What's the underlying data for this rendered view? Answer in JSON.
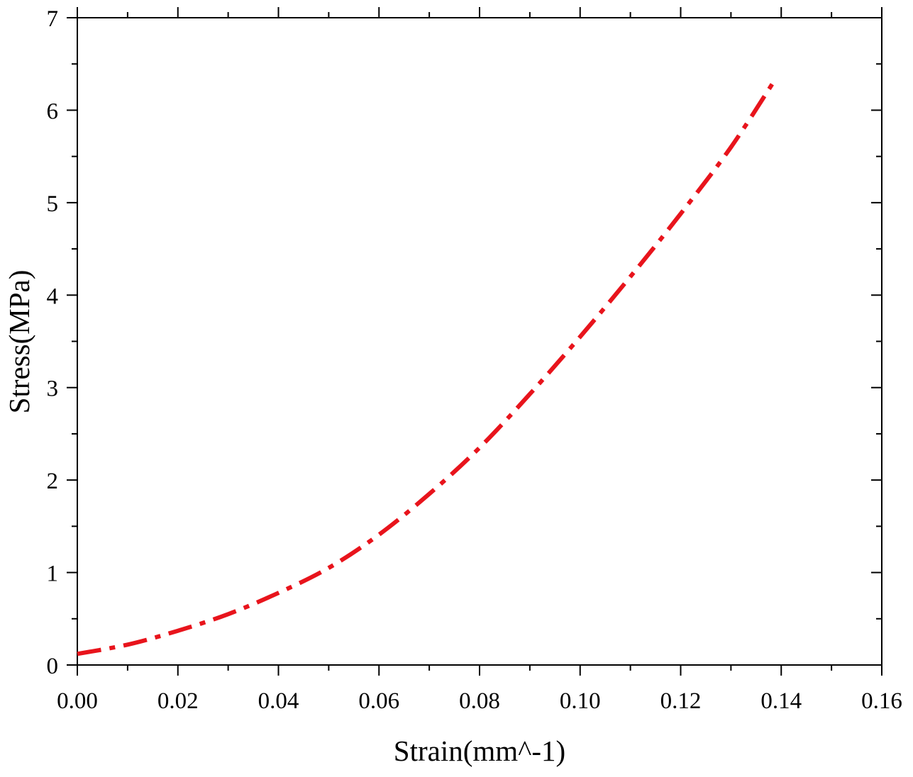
{
  "chart_data": {
    "type": "line",
    "title": "",
    "xlabel": "Strain(mm^-1)",
    "ylabel": "Stress(MPa)",
    "xlim": [
      0,
      0.16
    ],
    "ylim": [
      0,
      7
    ],
    "x_ticks": [
      "0.00",
      "0.02",
      "0.04",
      "0.06",
      "0.08",
      "0.10",
      "0.12",
      "0.14",
      "0.16"
    ],
    "y_ticks": [
      "0",
      "1",
      "2",
      "3",
      "4",
      "5",
      "6",
      "7"
    ],
    "grid": false,
    "legend": "none",
    "series": [
      {
        "color": "#e8141c",
        "line_style": "dash-dot",
        "x": [
          0.0,
          0.01,
          0.02,
          0.03,
          0.04,
          0.05,
          0.06,
          0.07,
          0.08,
          0.09,
          0.1,
          0.11,
          0.12,
          0.13,
          0.139
        ],
        "y": [
          0.12,
          0.22,
          0.37,
          0.55,
          0.78,
          1.05,
          1.41,
          1.85,
          2.35,
          2.93,
          3.55,
          4.2,
          4.88,
          5.6,
          6.35
        ]
      }
    ]
  }
}
